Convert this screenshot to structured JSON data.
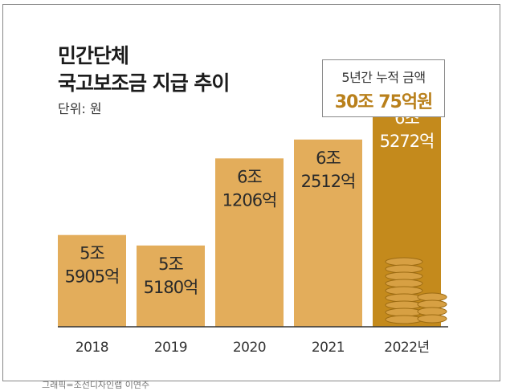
{
  "title_line1": "민간단체",
  "title_line2": "국고보조금 지급 추이",
  "unit": "단위: 원",
  "callout": {
    "label": "5년간 누적 금액",
    "value": "30조 75억원"
  },
  "credit": "그래픽=조선디자인랩 이연주",
  "colors": {
    "bar": "#e3ad5b",
    "bar_highlight": "#c48a1c",
    "value_highlight": "#b9801b",
    "coin": "#d7a043",
    "coin_line": "#9c6b12"
  },
  "chart_data": {
    "type": "bar",
    "title": "민간단체 국고보조금 지급 추이",
    "unit": "원",
    "categories": [
      "2018",
      "2019",
      "2020",
      "2021",
      "2022년"
    ],
    "values": [
      5.5905,
      5.518,
      6.1206,
      6.2512,
      6.5272
    ],
    "value_unit": "조원",
    "value_labels": [
      [
        "5조",
        "5905억"
      ],
      [
        "5조",
        "5180억"
      ],
      [
        "6조",
        "1206억"
      ],
      [
        "6조",
        "2512억"
      ],
      [
        "6조",
        "5272억"
      ]
    ],
    "highlight_index": 4
  }
}
